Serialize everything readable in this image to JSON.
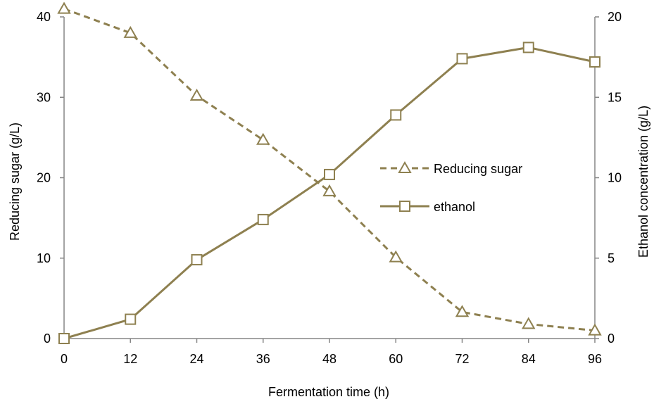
{
  "chart_data": {
    "type": "line",
    "x": [
      0,
      12,
      24,
      36,
      48,
      60,
      72,
      84,
      96
    ],
    "x_ticks": [
      "0",
      "12",
      "24",
      "36",
      "48",
      "60",
      "72",
      "84",
      "96"
    ],
    "xlim": [
      0,
      96
    ],
    "xlabel": "Fermentation time (h)",
    "ylabel_left": "Reducing sugar (g/L)",
    "ylabel_right": "Ethanol concentration (g/L)",
    "ylim_left": [
      0,
      40
    ],
    "ylim_right": [
      0,
      20
    ],
    "y_ticks_left": [
      "0",
      "10",
      "20",
      "30",
      "40"
    ],
    "y_ticks_right": [
      "0",
      "5",
      "10",
      "15",
      "20"
    ],
    "grid": false,
    "legend_position": "center-right",
    "series": [
      {
        "name": "Reducing sugar",
        "axis": "left",
        "line_style": "dashed",
        "marker": "triangle",
        "color": "#8E8050",
        "values": [
          41.0,
          38.0,
          30.2,
          24.7,
          18.3,
          10.1,
          3.3,
          1.8,
          1.0
        ]
      },
      {
        "name": "ethanol",
        "axis": "right",
        "line_style": "solid",
        "marker": "square",
        "color": "#8E8050",
        "values": [
          0.0,
          1.2,
          4.9,
          7.4,
          10.2,
          13.9,
          17.4,
          18.1,
          17.2
        ]
      }
    ]
  }
}
